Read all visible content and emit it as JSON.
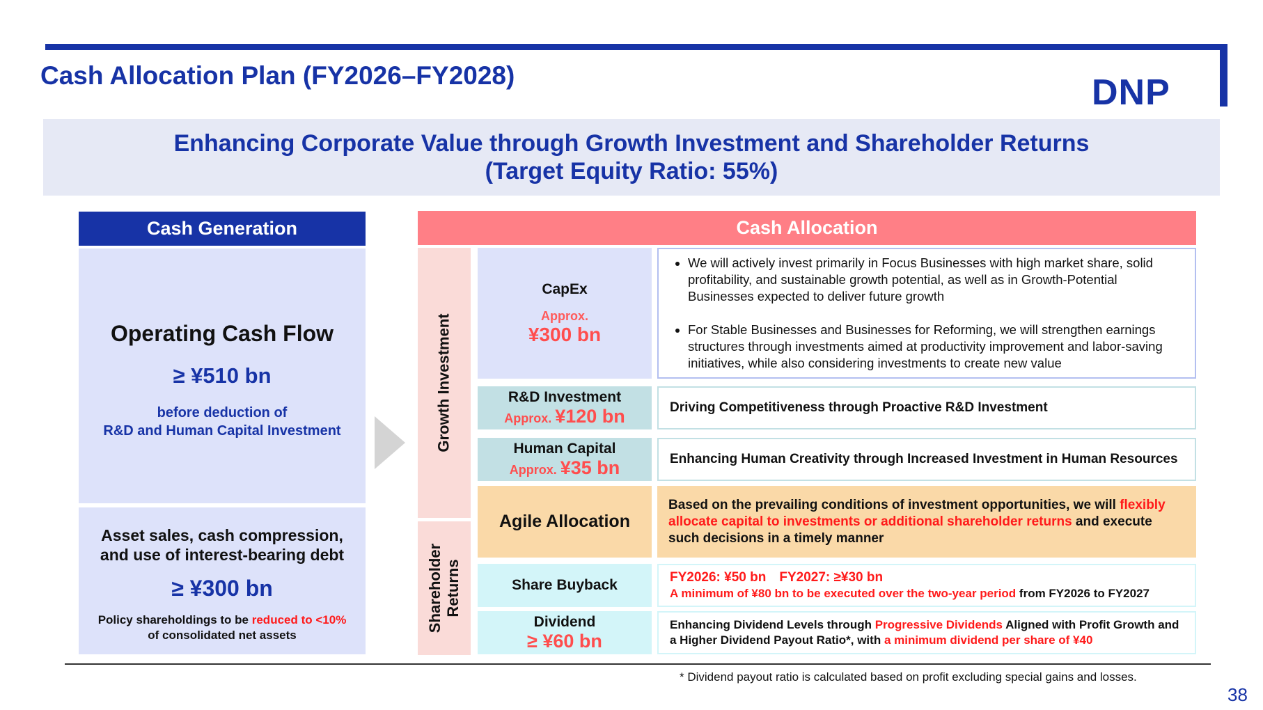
{
  "title": "Cash Allocation Plan (FY2026–FY2028)",
  "logo": "DNP",
  "banner": {
    "line1": "Enhancing Corporate Value through Growth Investment and Shareholder Returns",
    "line2": "(Target Equity Ratio: 55%)"
  },
  "cash_generation": {
    "header": "Cash Generation",
    "operating": {
      "title": "Operating Cash Flow",
      "value": "≥ ¥510 bn",
      "note_line1": "before deduction of",
      "note_line2": "R&D and Human Capital Investment"
    },
    "asset": {
      "title_line1": "Asset sales, cash compression,",
      "title_line2": "and use of interest-bearing debt",
      "value": "≥ ¥300 bn",
      "note_prefix": "Policy shareholdings to be ",
      "note_red": "reduced to <10%",
      "note_line2": "of consolidated net assets"
    }
  },
  "cash_allocation": {
    "header": "Cash Allocation",
    "growth_label": "Growth Investment",
    "shareholder_label_line1": "Shareholder",
    "shareholder_label_line2": "Returns",
    "capex": {
      "label": "CapEx",
      "approx": "Approx.",
      "value": "¥300 bn",
      "bullet1": "We will actively invest primarily in Focus Businesses with high market share, solid profitability, and sustainable growth potential, as well as in Growth-Potential Businesses expected to deliver future growth",
      "bullet2": "For Stable Businesses and Businesses for Reforming, we will strengthen earnings structures through investments aimed at productivity improvement and labor-saving initiatives, while also considering investments to create new value"
    },
    "rnd": {
      "label": "R&D Investment",
      "approx": "Approx. ",
      "value": "¥120 bn",
      "desc": "Driving Competitiveness through Proactive R&D Investment"
    },
    "human": {
      "label": "Human Capital",
      "approx": "Approx. ",
      "value": "¥35 bn",
      "desc": "Enhancing Human Creativity through Increased Investment in Human Resources"
    },
    "agile": {
      "label": "Agile Allocation",
      "desc_part1": "Based on the prevailing conditions of investment opportunities, we will ",
      "desc_red": "flexibly allocate capital to investments or additional shareholder returns",
      "desc_part2": " and execute such decisions in a timely manner"
    },
    "buyback": {
      "label": "Share Buyback",
      "line1": "FY2026: ¥50 bn　FY2027: ≥¥30 bn",
      "line2_red": "A minimum of ¥80 bn to be executed over the two-year period",
      "line2_rest": " from FY2026 to FY2027"
    },
    "dividend": {
      "label": "Dividend",
      "value": "≥ ¥60 bn",
      "desc_part1": "Enhancing Dividend Levels through ",
      "desc_red1": "Progressive Dividends",
      "desc_part2": " Aligned with Profit Growth and a Higher Dividend Payout Ratio*, with ",
      "desc_red2": "a minimum dividend per share of ¥40"
    }
  },
  "footnote": "* Dividend payout ratio is calculated based on profit excluding special gains and losses.",
  "page_number": "38",
  "colors": {
    "primary_blue": "#1733a6",
    "allocation_pink": "#ff7f86",
    "emphasis_red": "#ff1a1a",
    "light_blue_panel": "#dde2fa",
    "teal_panel": "#c2e0e4",
    "agile_orange": "#fad9a8",
    "cyan_panel": "#d3f5f9",
    "side_pink": "#fadbd8"
  }
}
